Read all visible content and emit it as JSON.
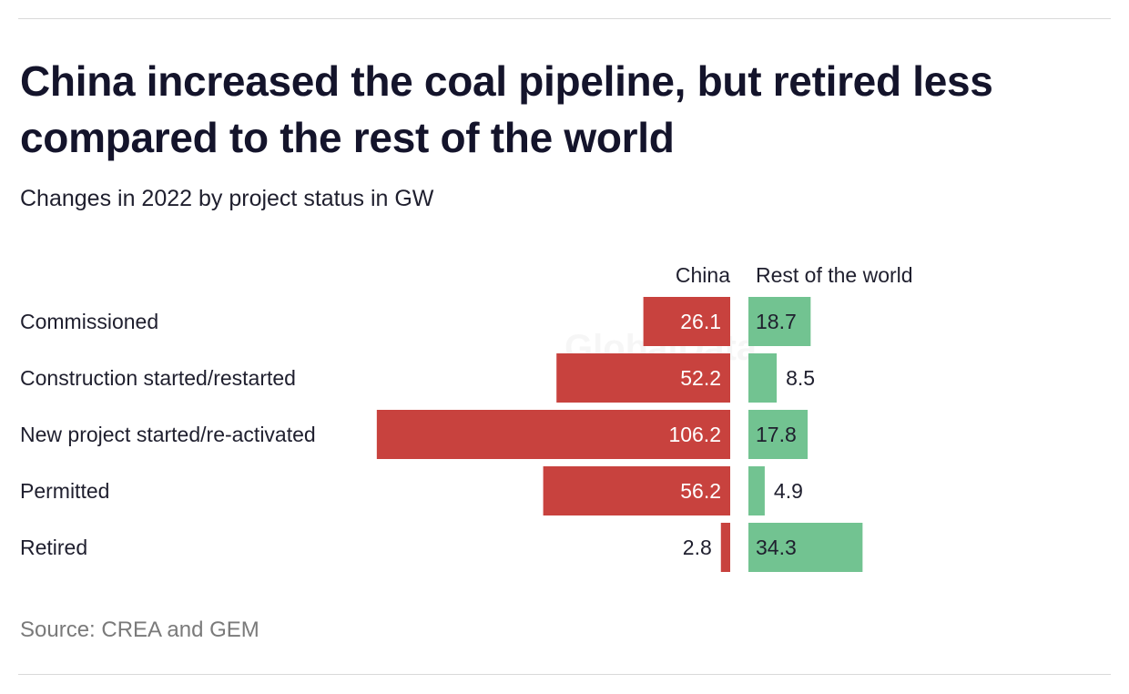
{
  "title": "China increased the coal pipeline, but retired less compared to the rest of the world",
  "subtitle": "Changes in 2022 by project status in GW",
  "source": "Source: CREA and GEM",
  "watermark": "GlobalData",
  "chart_data": {
    "type": "bar",
    "orientation": "horizontal",
    "categories": [
      "Commissioned",
      "Construction started/restarted",
      "New project started/re-activated",
      "Permitted",
      "Retired"
    ],
    "series": [
      {
        "name": "China",
        "values": [
          26.1,
          52.2,
          106.2,
          56.2,
          2.8
        ],
        "color": "#c8423e"
      },
      {
        "name": "Rest of the world",
        "values": [
          18.7,
          8.5,
          17.8,
          4.9,
          34.3
        ],
        "color": "#72c391"
      }
    ],
    "unit": "GW"
  }
}
